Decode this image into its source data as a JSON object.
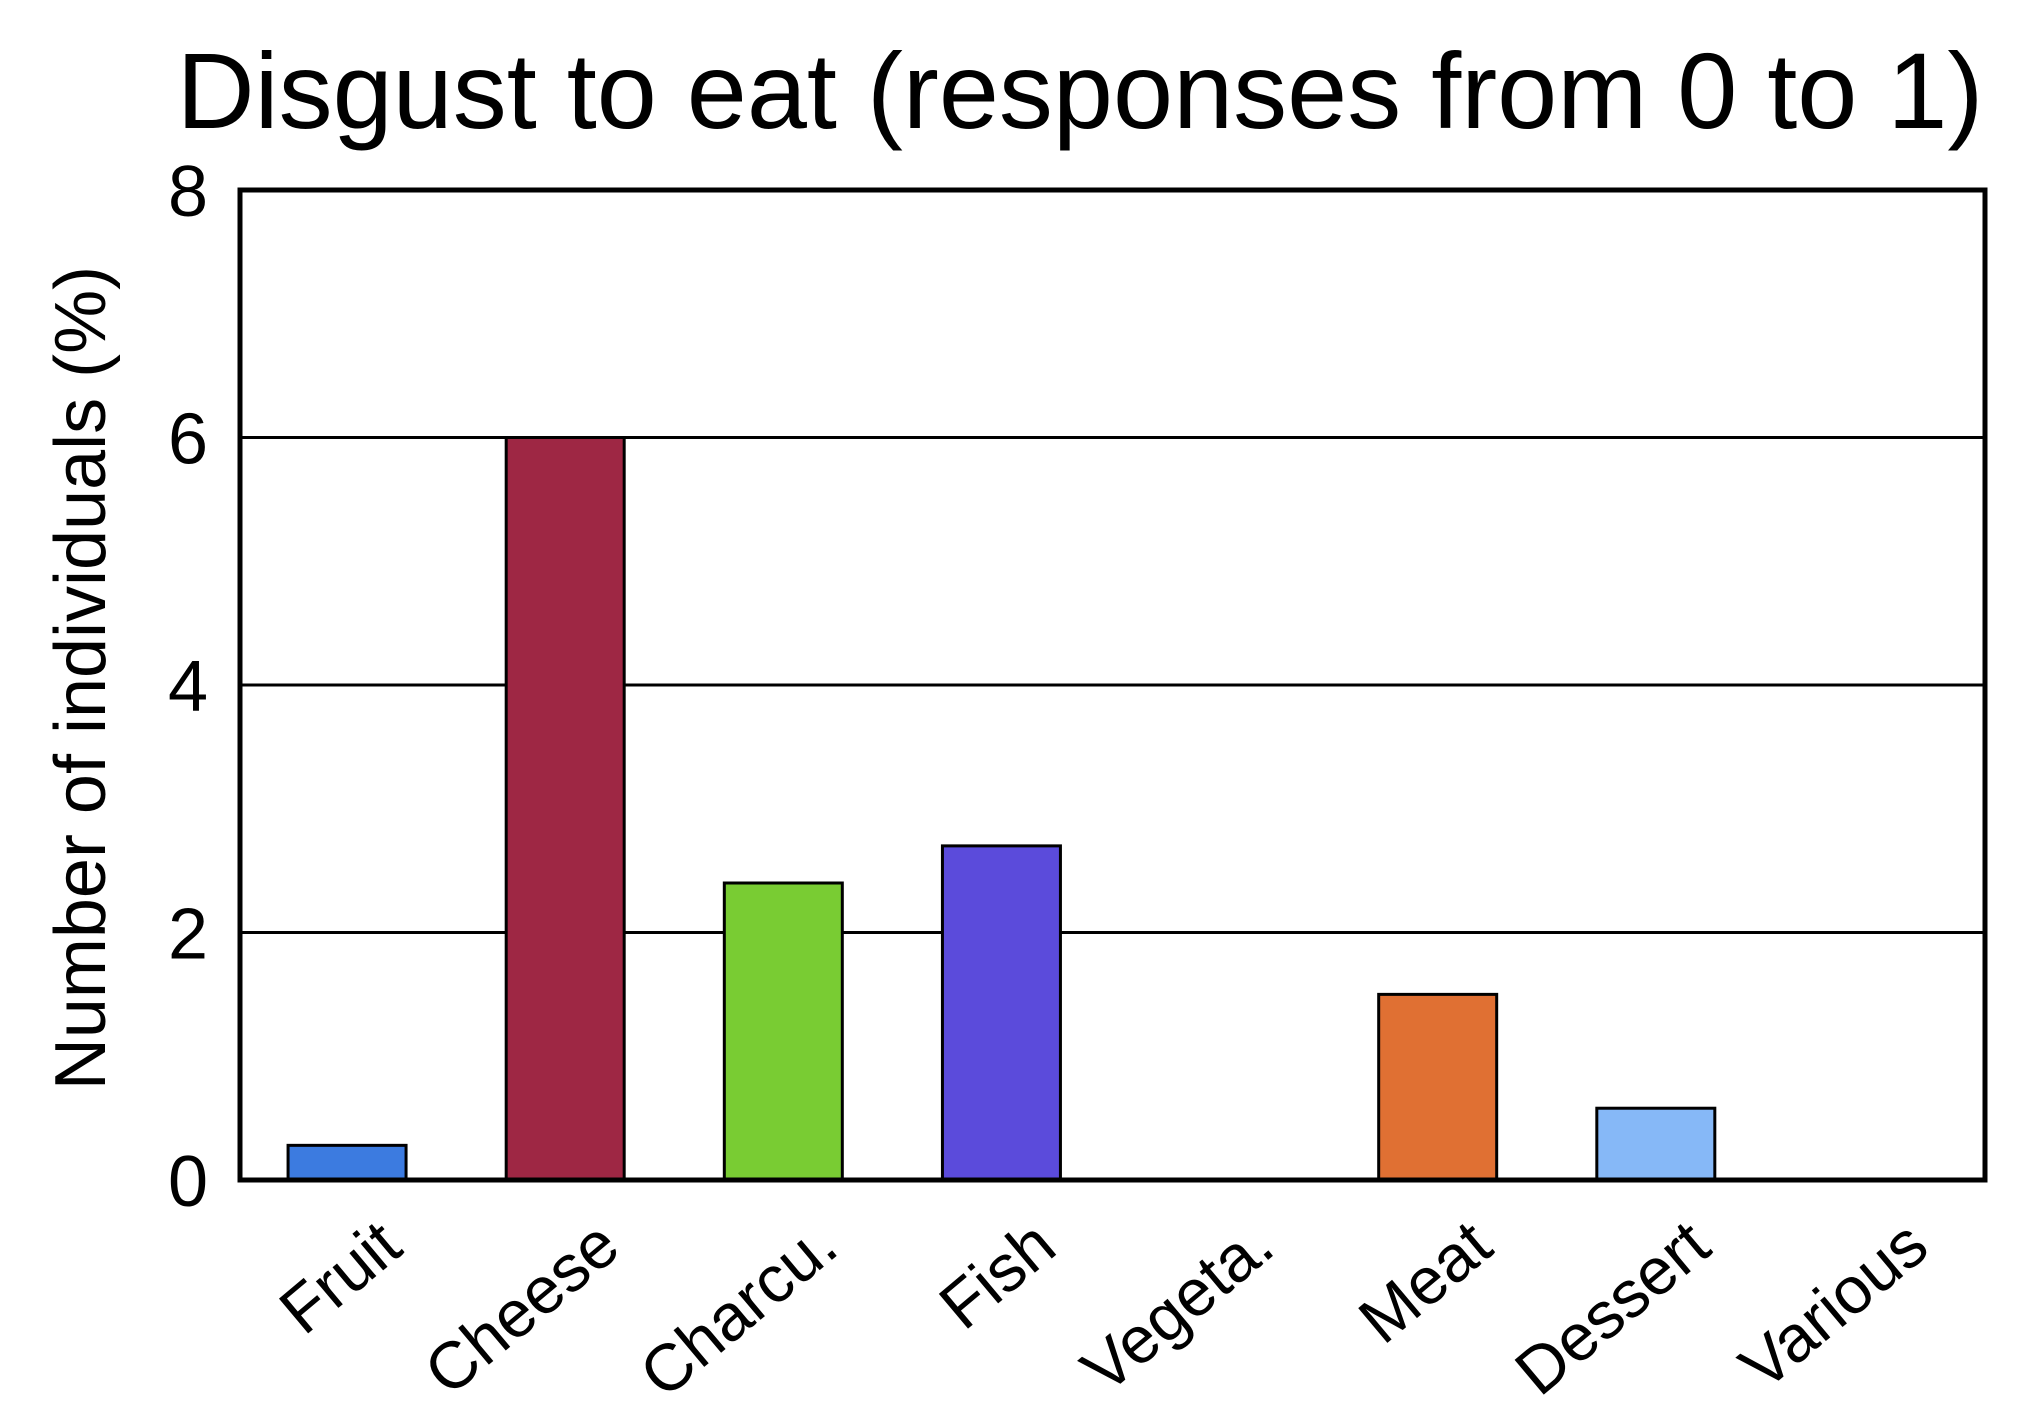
{
  "chart_data": {
    "type": "bar",
    "title": "Disgust to eat (responses from 0 to 1)",
    "xlabel": "",
    "ylabel": "Number of individuals (%)",
    "ylim": [
      0,
      8
    ],
    "yticks": [
      0,
      2,
      4,
      6,
      8
    ],
    "grid": true,
    "categories": [
      "Fruit",
      "Cheese",
      "Charcu.",
      "Fish",
      "Vegeta.",
      "Meat",
      "Dessert",
      "Various"
    ],
    "values": [
      0.28,
      6.0,
      2.4,
      2.7,
      0,
      1.5,
      0.58,
      0
    ],
    "colors": [
      "#3c7be0",
      "#9e2744",
      "#79cc33",
      "#5b4bdb",
      "#cccccc",
      "#e07033",
      "#86b8f7",
      "#cccccc"
    ]
  }
}
